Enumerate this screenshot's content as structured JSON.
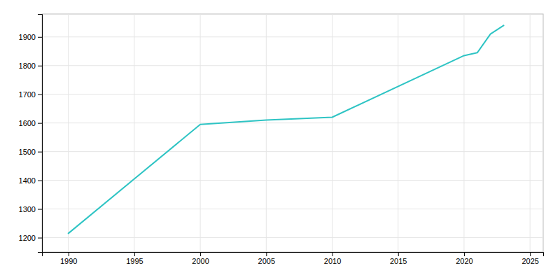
{
  "chart_data": {
    "type": "line",
    "x": [
      1990,
      2000,
      2005,
      2010,
      2020,
      2021,
      2022,
      2023
    ],
    "values": [
      1215,
      1595,
      1610,
      1620,
      1835,
      1845,
      1910,
      1940
    ],
    "color": "#2EC4C4",
    "xlim": [
      1988,
      2026
    ],
    "ylim": [
      1150,
      1980
    ],
    "xticks": [
      1990,
      1995,
      2000,
      2005,
      2010,
      2015,
      2020,
      2025
    ],
    "yticks": [
      1200,
      1300,
      1400,
      1500,
      1600,
      1700,
      1800,
      1900
    ],
    "grid": true
  }
}
